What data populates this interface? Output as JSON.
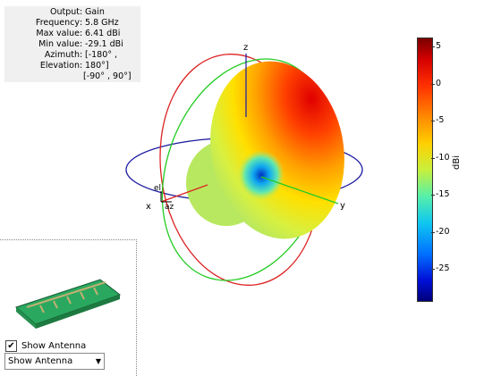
{
  "info": {
    "rows": [
      {
        "key": "Output",
        "value": "Gain"
      },
      {
        "key": "Frequency",
        "value": "5.8 GHz"
      },
      {
        "key": "Max value",
        "value": "6.41 dBi"
      },
      {
        "key": "Min value",
        "value": "-29.1 dBi"
      },
      {
        "key": "Azimuth",
        "value": "[-180° ,"
      },
      {
        "key": "Elevation",
        "value": "180°]"
      }
    ],
    "continuation": "[-90° , 90°]"
  },
  "axes": {
    "x": "x",
    "y": "y",
    "z": "z",
    "el": "el",
    "az": "az"
  },
  "colorbar": {
    "unit": "dBi",
    "ticks": [
      "5",
      "0",
      "-5",
      "-10",
      "-15",
      "-20",
      "-25"
    ]
  },
  "controls": {
    "show_antenna_checkbox_label": "Show Antenna",
    "show_antenna_checked": true,
    "dropdown_value": "Show Antenna"
  },
  "colors": {
    "xy_circle": "#1a1aa0",
    "xz_circle": "#dd2222",
    "yz_circle": "#22cc22",
    "antenna_board": "#2aa860"
  }
}
